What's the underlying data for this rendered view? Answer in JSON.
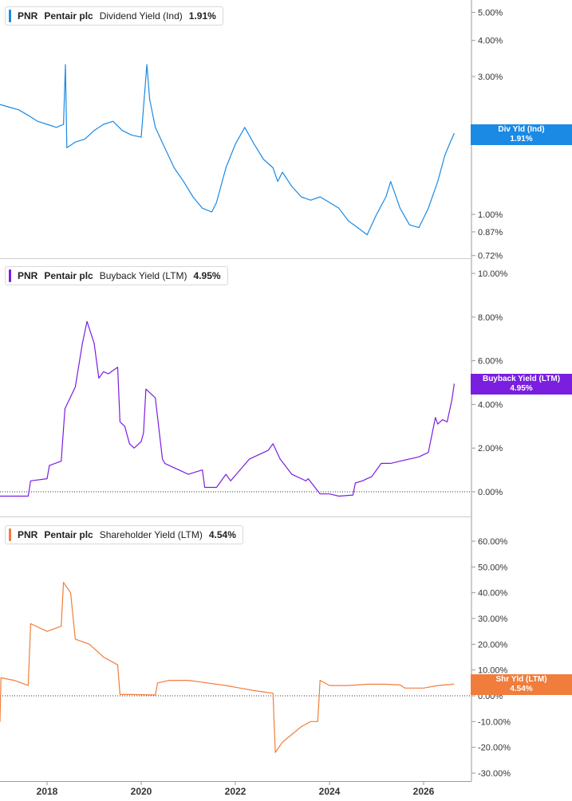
{
  "colors": {
    "div": "#1a8ae5",
    "buy": "#7a1ee0",
    "shr": "#f07d3c",
    "grid": "#cccccc",
    "axis": "#999999"
  },
  "panels": [
    {
      "ticker": "PNR",
      "company": "Pentair plc",
      "metric": "Dividend Yield (Ind)",
      "value": "1.91%",
      "flag_label": "Div Yld (Ind)",
      "flag_value": "1.91%"
    },
    {
      "ticker": "PNR",
      "company": "Pentair plc",
      "metric": "Buyback Yield (LTM)",
      "value": "4.95%",
      "flag_label": "Buyback Yield (LTM)",
      "flag_value": "4.95%"
    },
    {
      "ticker": "PNR",
      "company": "Pentair plc",
      "metric": "Shareholder Yield (LTM)",
      "value": "4.54%",
      "flag_label": "Shr Yld (LTM)",
      "flag_value": "4.54%"
    }
  ],
  "chart_data": [
    {
      "type": "line",
      "name": "Dividend Yield (Ind)",
      "scale": "log",
      "ylim": [
        0.72,
        5.5
      ],
      "yticks": [
        0.72,
        0.87,
        1.0,
        2.0,
        3.0,
        4.0,
        5.0
      ],
      "ytick_labels": [
        "0.72%",
        "0.87%",
        "1.00%",
        "2.00%",
        "3.00%",
        "4.00%",
        "5.00%"
      ],
      "x": [
        2017.0,
        2017.2,
        2017.4,
        2017.6,
        2017.8,
        2018.0,
        2018.2,
        2018.35,
        2018.39,
        2018.42,
        2018.6,
        2018.8,
        2019.0,
        2019.2,
        2019.4,
        2019.6,
        2019.8,
        2020.0,
        2020.12,
        2020.18,
        2020.3,
        2020.5,
        2020.7,
        2020.9,
        2021.1,
        2021.3,
        2021.5,
        2021.6,
        2021.8,
        2022.0,
        2022.2,
        2022.4,
        2022.6,
        2022.8,
        2022.9,
        2023.0,
        2023.2,
        2023.4,
        2023.6,
        2023.8,
        2024.0,
        2024.2,
        2024.4,
        2024.6,
        2024.8,
        2025.0,
        2025.2,
        2025.3,
        2025.5,
        2025.7,
        2025.9,
        2026.1,
        2026.3,
        2026.45,
        2026.55,
        2026.65
      ],
      "values": [
        2.4,
        2.35,
        2.3,
        2.2,
        2.1,
        2.05,
        2.0,
        2.05,
        3.3,
        1.7,
        1.78,
        1.82,
        1.95,
        2.05,
        2.1,
        1.95,
        1.88,
        1.85,
        3.3,
        2.5,
        2.0,
        1.7,
        1.45,
        1.3,
        1.15,
        1.05,
        1.02,
        1.1,
        1.45,
        1.75,
        2.0,
        1.75,
        1.55,
        1.45,
        1.3,
        1.4,
        1.25,
        1.15,
        1.12,
        1.15,
        1.1,
        1.05,
        0.95,
        0.9,
        0.85,
        1.0,
        1.15,
        1.3,
        1.05,
        0.92,
        0.9,
        1.05,
        1.3,
        1.6,
        1.75,
        1.91
      ]
    },
    {
      "type": "line",
      "name": "Buyback Yield (LTM)",
      "ylim": [
        -0.3,
        10.4
      ],
      "yticks": [
        0,
        2,
        4,
        6,
        8,
        10
      ],
      "ytick_labels": [
        "0.00%",
        "2.00%",
        "4.00%",
        "6.00%",
        "8.00%",
        "10.00%"
      ],
      "x": [
        2017.0,
        2017.6,
        2017.65,
        2018.0,
        2018.05,
        2018.3,
        2018.38,
        2018.6,
        2018.75,
        2018.85,
        2019.0,
        2019.1,
        2019.2,
        2019.3,
        2019.5,
        2019.55,
        2019.65,
        2019.75,
        2019.85,
        2020.0,
        2020.05,
        2020.1,
        2020.3,
        2020.45,
        2020.5,
        2020.7,
        2020.8,
        2021.0,
        2021.3,
        2021.35,
        2021.6,
        2021.8,
        2021.9,
        2022.1,
        2022.3,
        2022.5,
        2022.7,
        2022.8,
        2022.95,
        2023.2,
        2023.5,
        2023.55,
        2023.8,
        2024.0,
        2024.2,
        2024.5,
        2024.55,
        2024.7,
        2024.9,
        2025.1,
        2025.3,
        2025.5,
        2025.7,
        2025.9,
        2026.1,
        2026.25,
        2026.3,
        2026.4,
        2026.5,
        2026.6,
        2026.65
      ],
      "values": [
        -0.2,
        -0.2,
        0.5,
        0.6,
        1.2,
        1.4,
        3.8,
        4.8,
        6.8,
        7.8,
        6.8,
        5.2,
        5.5,
        5.4,
        5.7,
        3.2,
        3.0,
        2.2,
        2.0,
        2.3,
        2.7,
        4.7,
        4.3,
        1.5,
        1.3,
        1.1,
        1.0,
        0.8,
        1.0,
        0.2,
        0.2,
        0.8,
        0.5,
        1.0,
        1.5,
        1.7,
        1.9,
        2.2,
        1.5,
        0.8,
        0.5,
        0.6,
        -0.1,
        -0.1,
        -0.2,
        -0.15,
        0.4,
        0.5,
        0.7,
        1.3,
        1.3,
        1.4,
        1.5,
        1.6,
        1.8,
        3.4,
        3.1,
        3.3,
        3.2,
        4.2,
        4.95
      ]
    },
    {
      "type": "line",
      "name": "Shareholder Yield (LTM)",
      "ylim": [
        -31,
        66
      ],
      "yticks": [
        -30,
        -20,
        -10,
        0,
        10,
        20,
        30,
        40,
        50,
        60
      ],
      "ytick_labels": [
        "-30.00%",
        "-20.00%",
        "-10.00%",
        "0.00%",
        "10.00%",
        "20.00%",
        "30.00%",
        "40.00%",
        "50.00%",
        "60.00%"
      ],
      "x": [
        2016.95,
        2017.0,
        2017.02,
        2017.3,
        2017.6,
        2017.65,
        2018.0,
        2018.3,
        2018.35,
        2018.5,
        2018.6,
        2018.9,
        2019.2,
        2019.5,
        2019.55,
        2019.8,
        2020.3,
        2020.35,
        2020.6,
        2021.0,
        2021.4,
        2021.8,
        2022.1,
        2022.4,
        2022.6,
        2022.8,
        2022.85,
        2023.0,
        2023.2,
        2023.4,
        2023.6,
        2023.75,
        2023.8,
        2024.0,
        2024.4,
        2024.8,
        2025.2,
        2025.5,
        2025.6,
        2026.0,
        2026.3,
        2026.5,
        2026.65
      ],
      "values": [
        -10,
        -10,
        7,
        6,
        4,
        28,
        25,
        27,
        44,
        40,
        22,
        20,
        15,
        12,
        0.5,
        0.5,
        0.3,
        5,
        6,
        6,
        5,
        4,
        3,
        2,
        1.5,
        1,
        -22,
        -18,
        -15,
        -12,
        -10,
        -10,
        6,
        4,
        4,
        4.5,
        4.5,
        4.2,
        3,
        3,
        4,
        4.3,
        4.54
      ]
    }
  ],
  "x_axis": {
    "ticks": [
      2018,
      2020,
      2022,
      2024,
      2026
    ],
    "labels": [
      "2018",
      "2020",
      "2022",
      "2024",
      "2026"
    ]
  }
}
